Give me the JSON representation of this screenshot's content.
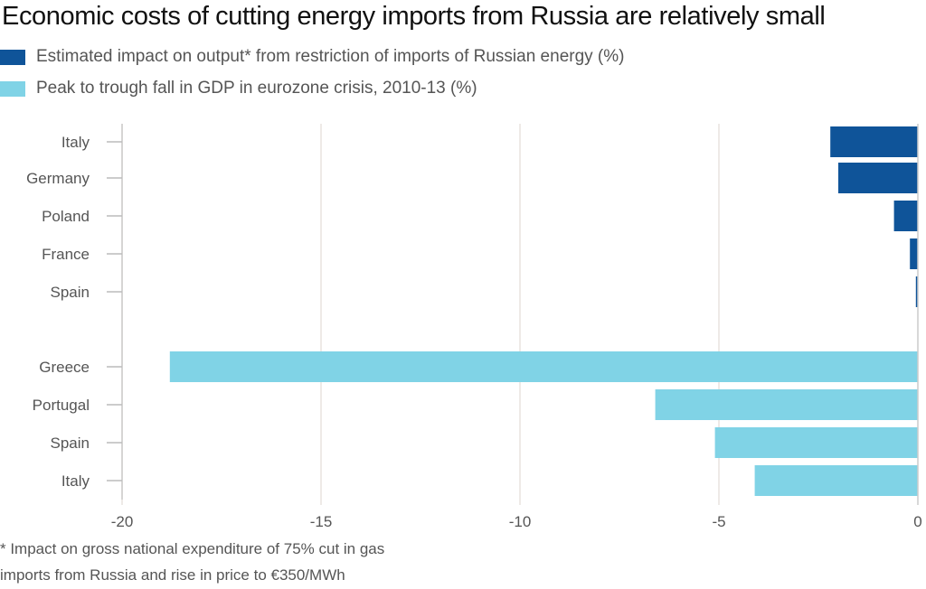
{
  "chart_data": {
    "type": "bar",
    "orientation": "horizontal",
    "title": "Economic costs of cutting energy imports from Russia are relatively small",
    "legend": [
      {
        "label": "Estimated impact on output* from restriction of imports of Russian energy (%)",
        "color": "#0f5499"
      },
      {
        "label": "Peak to trough fall in GDP in eurozone crisis, 2010-13 (%)",
        "color": "#80d3e6"
      }
    ],
    "groups": [
      {
        "series": "Estimated impact on output* from restriction of imports of Russian energy (%)",
        "color": "#0f5499",
        "categories": [
          "Italy",
          "Germany",
          "Poland",
          "France",
          "Spain"
        ],
        "values": [
          -2.2,
          -2.0,
          -0.6,
          -0.2,
          -0.05
        ]
      },
      {
        "series": "Peak to trough fall in GDP in eurozone crisis, 2010-13 (%)",
        "color": "#80d3e6",
        "categories": [
          "Greece",
          "Portugal",
          "Spain",
          "Italy"
        ],
        "values": [
          -18.8,
          -6.6,
          -5.1,
          -4.1
        ]
      }
    ],
    "xlim": [
      -20,
      0
    ],
    "xticks": [
      "-20",
      "-15",
      "-10",
      "-5",
      "0"
    ],
    "xtick_values": [
      -20,
      -15,
      -10,
      -5,
      0
    ],
    "grid": true,
    "legend_position": "top-left",
    "xlabel": "",
    "ylabel": "",
    "footnote": [
      "* Impact on gross national expenditure of 75% cut in gas",
      "imports from Russia and rise in price to €350/MWh"
    ]
  }
}
